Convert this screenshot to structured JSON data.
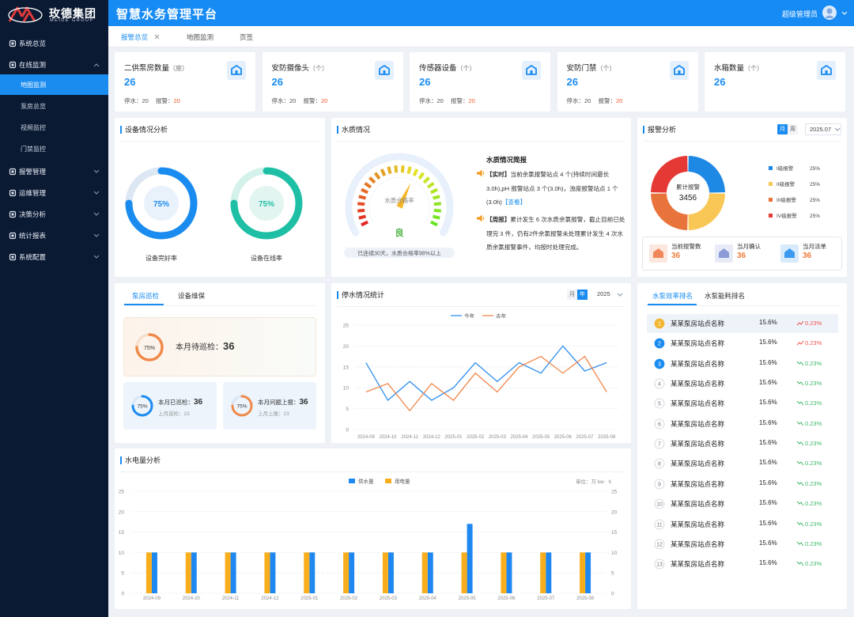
{
  "sidebar": {
    "logo": "玫德集团",
    "logo_sub": "MEIDE GROUP",
    "menu": [
      {
        "label": "系统总览"
      },
      {
        "label": "在线监测",
        "expanded": true,
        "children": [
          {
            "label": "地图监测",
            "active": true
          },
          {
            "label": "泵房总览"
          },
          {
            "label": "视频监控"
          },
          {
            "label": "门禁监控"
          }
        ]
      },
      {
        "label": "报警管理"
      },
      {
        "label": "运维管理"
      },
      {
        "label": "决策分析"
      },
      {
        "label": "统计报表"
      },
      {
        "label": "系统配置"
      }
    ]
  },
  "header": {
    "title": "智慧水务管理平台",
    "user": "超级管理员"
  },
  "tabs": [
    {
      "label": "报警总览",
      "active": true,
      "closable": true
    },
    {
      "label": "地图监测"
    },
    {
      "label": "页签"
    }
  ],
  "stat_cards": [
    {
      "title": "二供泵房数量",
      "unit": "（座）",
      "value": 26,
      "stats": [
        {
          "label": "停水：",
          "value": 20
        },
        {
          "label": "报警：",
          "value": 20
        }
      ]
    },
    {
      "title": "安防摄像头",
      "unit": "（个）",
      "value": 26,
      "stats": [
        {
          "label": "停水：",
          "value": 20
        },
        {
          "label": "报警：",
          "value": 20
        }
      ]
    },
    {
      "title": "传感器设备",
      "unit": "（个）",
      "value": 26,
      "stats": [
        {
          "label": "停水：",
          "value": 20
        },
        {
          "label": "报警：",
          "value": 20
        }
      ]
    },
    {
      "title": "安防门禁",
      "unit": "（个）",
      "value": 26,
      "stats": [
        {
          "label": "停水：",
          "value": 20
        },
        {
          "label": "报警：",
          "value": 20
        }
      ]
    },
    {
      "title": "水箱数量",
      "unit": "（个）",
      "value": 26
    }
  ],
  "device_analysis": {
    "title": "设备情况分析",
    "rings": [
      {
        "value": 75,
        "label": "75%",
        "name": "设备完好率",
        "color": "#1a8cf0",
        "track": "#dde7f4"
      },
      {
        "value": 75,
        "label": "75%",
        "name": "设备在线率",
        "color": "#1fbfa5",
        "track": "#d4f1eb"
      }
    ]
  },
  "water_quality": {
    "title": "水质情况",
    "gauge_label": "水质合格率",
    "grade": "良",
    "caption": "已连续30天，水质合格率98%以上",
    "brief_title": "水质情况简报",
    "items": [
      {
        "tag": "【实时】",
        "text": "当前余氯报警站点 4 个(持续时间最长3.0h),pH 报警站点 3 个(3.0h)，浊度报警站点 1 个(3.0h)",
        "link": "【查看】"
      },
      {
        "tag": "【周报】",
        "text": "累计发生 6 次水质余氯报警，截止目前已处理完 3 件，仍有2件余氯报警未处理累计发生 4 次水质余氯报警事件，均按时处理完成。"
      }
    ]
  },
  "alarm_analysis": {
    "title": "报警分析",
    "periods": [
      {
        "label": "月",
        "active": true
      },
      {
        "label": "周"
      }
    ],
    "date": "2025.07",
    "center_label": "累计报警",
    "total": 3456,
    "levels": [
      {
        "name": "I级报警",
        "color": "#1e88e5",
        "value": 25,
        "value_label": "25%"
      },
      {
        "name": "II级报警",
        "color": "#f8c755",
        "value": 25,
        "value_label": "25%"
      },
      {
        "name": "III级报警",
        "color": "#e8743b",
        "value": 25,
        "value_label": "25%"
      },
      {
        "name": "IV级报警",
        "color": "#e53935",
        "value": 25,
        "value_label": "25%"
      }
    ],
    "summary": [
      {
        "label": "当前报警数",
        "value": 36,
        "color": "#f0875a"
      },
      {
        "label": "当月确认",
        "value": 36,
        "color": "#8a9bd8"
      },
      {
        "label": "当月派单",
        "value": 36,
        "color": "#3d9af0"
      }
    ]
  },
  "inspection": {
    "tabs": [
      {
        "label": "泵房巡检",
        "active": true
      },
      {
        "label": "设备维保"
      }
    ],
    "main": {
      "ring": {
        "value": 75,
        "label": "75%"
      },
      "label": "本月待巡检：",
      "value": 36
    },
    "cards": [
      {
        "ring": {
          "value": 75,
          "label": "75%"
        },
        "color": "#1a8cf0",
        "label": "本月已巡检：",
        "value": 36,
        "sub_label": "上月巡检：",
        "sub_value": 23
      },
      {
        "ring": {
          "value": 75,
          "label": "75%"
        },
        "color": "#f08a4b",
        "label": "本月问题上报：",
        "value": 36,
        "sub_label": "上月上报：",
        "sub_value": 23
      }
    ]
  },
  "outage_chart": {
    "type": "line",
    "title": "停水情况统计",
    "periods": [
      {
        "label": "月"
      },
      {
        "label": "年",
        "active": true
      }
    ],
    "year": "2025",
    "x": [
      "2024-09",
      "2024-10",
      "2024-11",
      "2024-12",
      "2025-01",
      "2025-02",
      "2025-03",
      "2025-04",
      "2025-05",
      "2025-06",
      "2025-07",
      "2025-08"
    ],
    "series": [
      {
        "name": "今年",
        "color": "#2f8ff0",
        "values": [
          16,
          7,
          11.5,
          7,
          10,
          16,
          11.5,
          16,
          13.5,
          20,
          14,
          16
        ]
      },
      {
        "name": "去年",
        "color": "#f0874a",
        "values": [
          9,
          11,
          4.5,
          11,
          7,
          13.5,
          9,
          15,
          17.5,
          13.5,
          17.5,
          9
        ]
      }
    ],
    "ylim": [
      0,
      25
    ],
    "yticks": [
      0,
      5,
      10,
      15,
      20,
      25
    ],
    "grid": true
  },
  "ranking": {
    "tabs": [
      {
        "label": "水泵效率排名",
        "active": true
      },
      {
        "label": "水泵能耗排名"
      }
    ],
    "rows": [
      {
        "rank": 1,
        "name": "某某泵房站点名称",
        "rate": "15.6%",
        "change": "0.23%",
        "trend": "up"
      },
      {
        "rank": 2,
        "name": "某某泵房站点名称",
        "rate": "15.6%",
        "change": "0.23%",
        "trend": "up"
      },
      {
        "rank": 3,
        "name": "某某泵房站点名称",
        "rate": "15.6%",
        "change": "0.23%",
        "trend": "down"
      },
      {
        "rank": 4,
        "name": "某某泵房站点名称",
        "rate": "15.6%",
        "change": "0.23%",
        "trend": "down"
      },
      {
        "rank": 5,
        "name": "某某泵房站点名称",
        "rate": "15.6%",
        "change": "0.23%",
        "trend": "down"
      },
      {
        "rank": 6,
        "name": "某某泵房站点名称",
        "rate": "15.6%",
        "change": "0.23%",
        "trend": "down"
      },
      {
        "rank": 7,
        "name": "某某泵房站点名称",
        "rate": "15.6%",
        "change": "0.23%",
        "trend": "down"
      },
      {
        "rank": 8,
        "name": "某某泵房站点名称",
        "rate": "15.6%",
        "change": "0.23%",
        "trend": "down"
      },
      {
        "rank": 9,
        "name": "某某泵房站点名称",
        "rate": "15.6%",
        "change": "0.23%",
        "trend": "down"
      },
      {
        "rank": 10,
        "name": "某某泵房站点名称",
        "rate": "15.6%",
        "change": "0.23%",
        "trend": "down"
      },
      {
        "rank": 11,
        "name": "某某泵房站点名称",
        "rate": "15.6%",
        "change": "0.23%",
        "trend": "down"
      },
      {
        "rank": 12,
        "name": "某某泵房站点名称",
        "rate": "15.6%",
        "change": "0.23%",
        "trend": "down"
      },
      {
        "rank": 13,
        "name": "某某泵房站点名称",
        "rate": "15.6%",
        "change": "0.23%",
        "trend": "down"
      }
    ]
  },
  "energy_chart": {
    "type": "bar",
    "title": "水电量分析",
    "unit": "单位：万 kw · h",
    "categories": [
      "2024-09",
      "2024-10",
      "2024-11",
      "2024-12",
      "2025-01",
      "2025-02",
      "2025-03",
      "2025-04",
      "2025-05",
      "2025-06",
      "2025-07",
      "2025-08"
    ],
    "series": [
      {
        "name": "供水量",
        "color": "#1e88f0",
        "values": [
          10,
          10,
          10,
          10,
          10,
          10,
          10,
          10,
          17,
          10,
          10,
          10
        ]
      },
      {
        "name": "用电量",
        "color": "#f8ae1c",
        "axis": "y2",
        "values": [
          10,
          10,
          10,
          10,
          10,
          10,
          10,
          10,
          10,
          10,
          10,
          10
        ]
      }
    ],
    "ylim": [
      0,
      25
    ],
    "yticks": [
      0,
      5,
      10,
      15,
      20,
      25
    ],
    "y2lim": [
      0,
      25
    ],
    "y2ticks": [
      0,
      5,
      10,
      15,
      20,
      25
    ],
    "grid": true
  }
}
